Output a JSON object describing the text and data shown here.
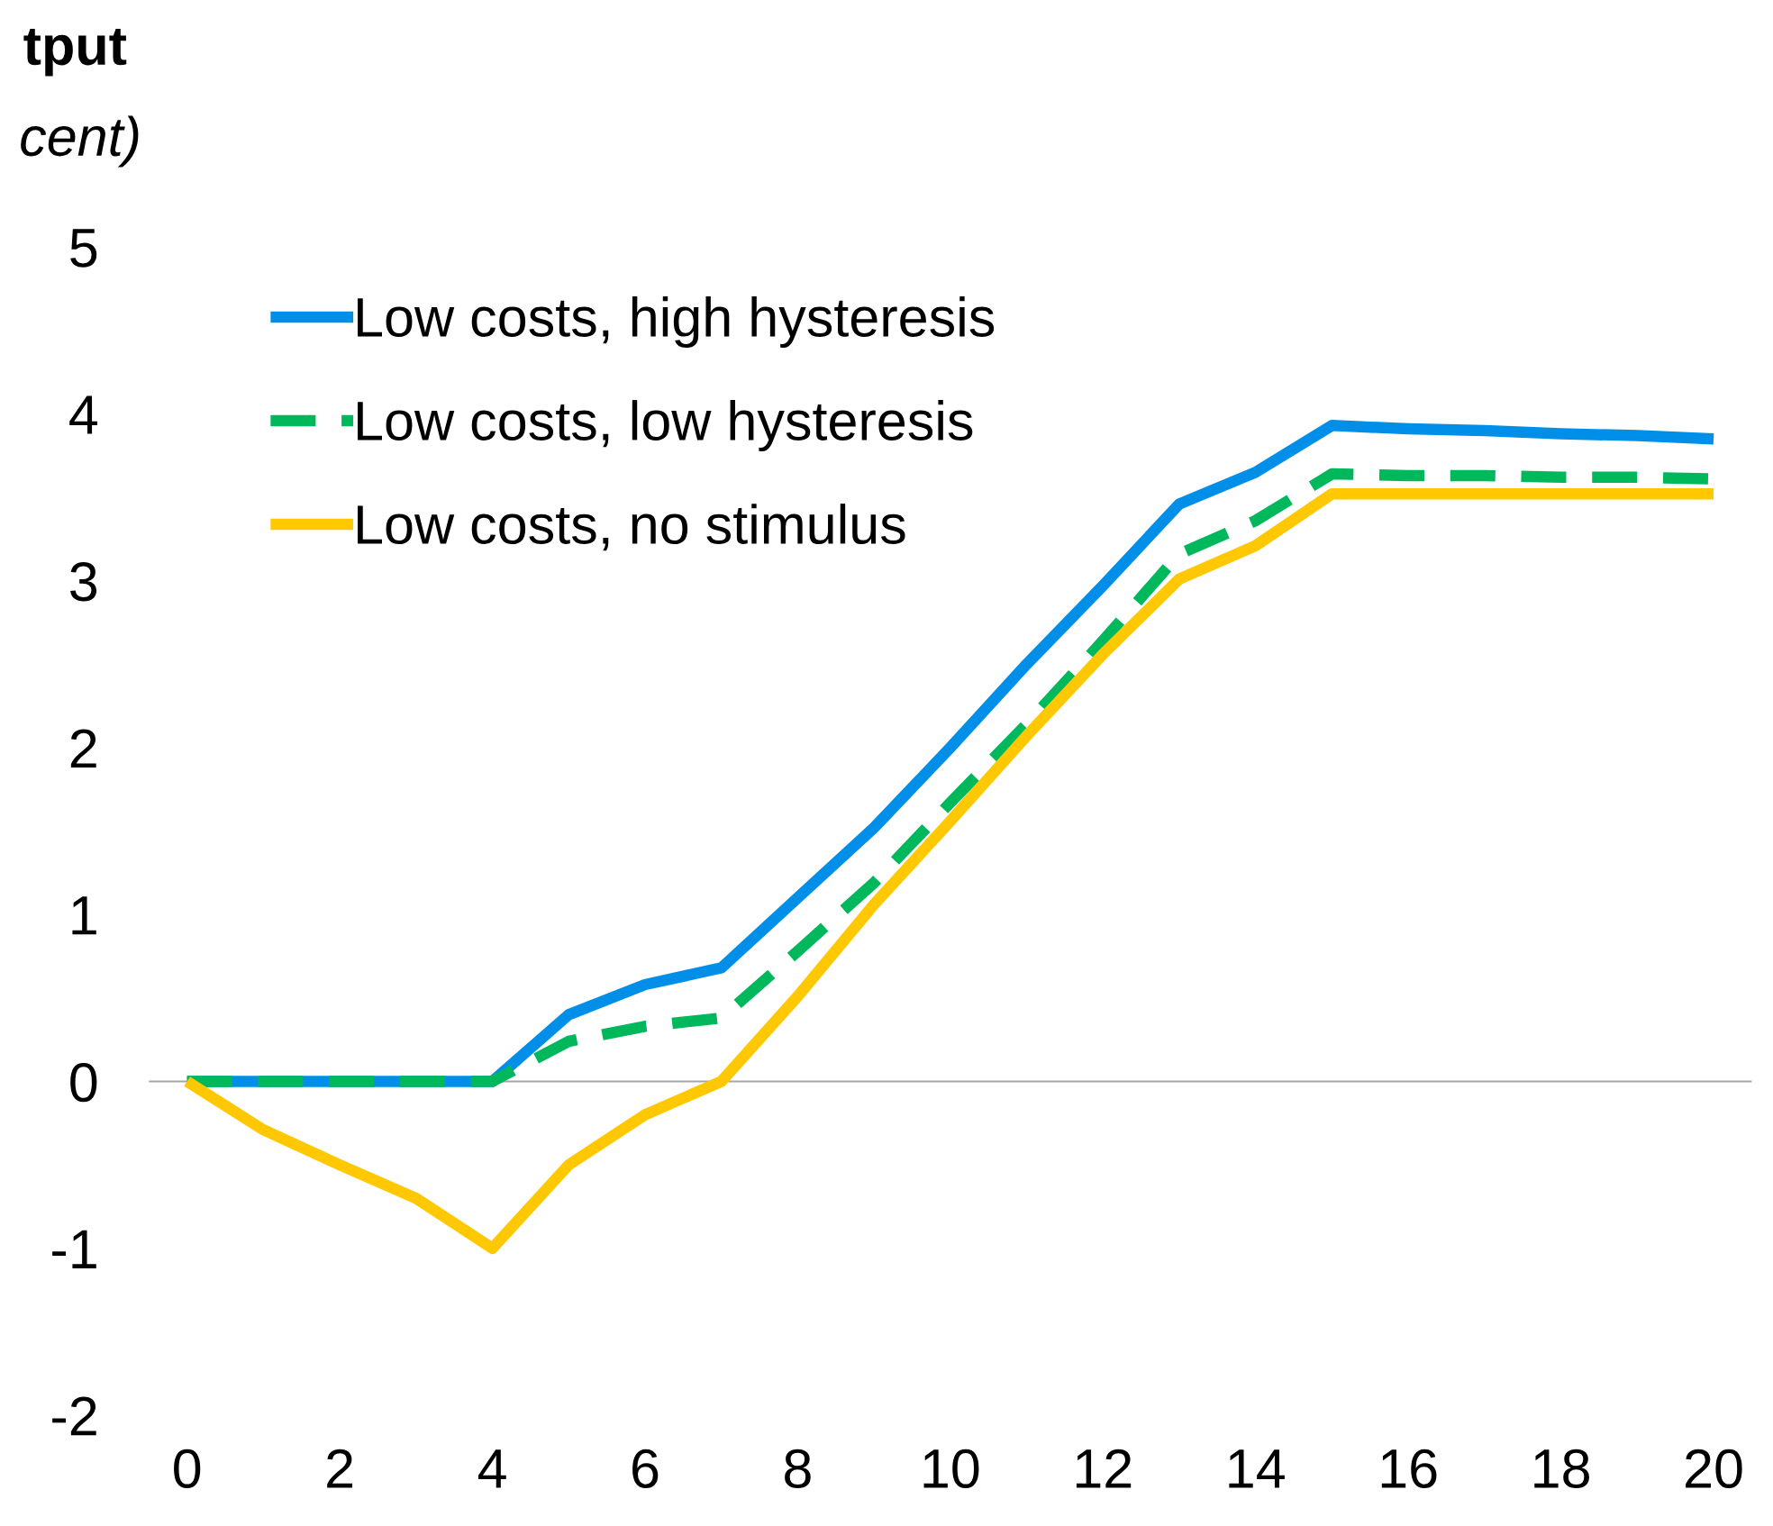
{
  "chart_data": {
    "type": "line",
    "title": "tput",
    "subtitle": "cent)",
    "x": [
      0,
      1,
      2,
      3,
      4,
      5,
      6,
      7,
      8,
      9,
      10,
      11,
      12,
      13,
      14,
      15,
      16,
      17,
      18,
      19,
      20
    ],
    "xlim": [
      -0.5,
      20.5
    ],
    "xticks": [
      0,
      2,
      4,
      6,
      8,
      10,
      12,
      14,
      16,
      18,
      20
    ],
    "ylim": [
      -2,
      5
    ],
    "yticks": [
      {
        "value": -2,
        "label": "-2"
      },
      {
        "value": -1,
        "label": "-1"
      },
      0,
      1,
      2,
      3,
      4,
      5
    ],
    "grid": false,
    "legend": "top left",
    "marker": "none",
    "ref_lines": [
      {
        "axis": "y",
        "value": 0,
        "color": "#a6a6a6"
      }
    ],
    "series": [
      {
        "name": "Low costs, high hysteresis",
        "color": "#008fe8",
        "line_style": "solid",
        "values": [
          0,
          0,
          0,
          0,
          0,
          0.4,
          0.58,
          0.68,
          1.1,
          1.52,
          2.0,
          2.5,
          2.97,
          3.46,
          3.65,
          3.93,
          3.91,
          3.9,
          3.88,
          3.87,
          3.85
        ]
      },
      {
        "name": "Low costs, low hysteresis",
        "color": "#00b85c",
        "line_style": "dashed",
        "values": [
          0,
          0,
          0,
          0,
          0,
          0.24,
          0.33,
          0.38,
          0.78,
          1.19,
          1.67,
          2.14,
          2.64,
          3.16,
          3.36,
          3.64,
          3.63,
          3.63,
          3.62,
          3.62,
          3.61
        ]
      },
      {
        "name": "Low costs, no stimulus",
        "color": "#ffc800",
        "line_style": "solid",
        "values": [
          0,
          -0.29,
          -0.5,
          -0.7,
          -1.0,
          -0.5,
          -0.2,
          0,
          0.51,
          1.06,
          1.56,
          2.07,
          2.56,
          3.01,
          3.21,
          3.52,
          3.52,
          3.52,
          3.52,
          3.52,
          3.52
        ]
      }
    ]
  }
}
